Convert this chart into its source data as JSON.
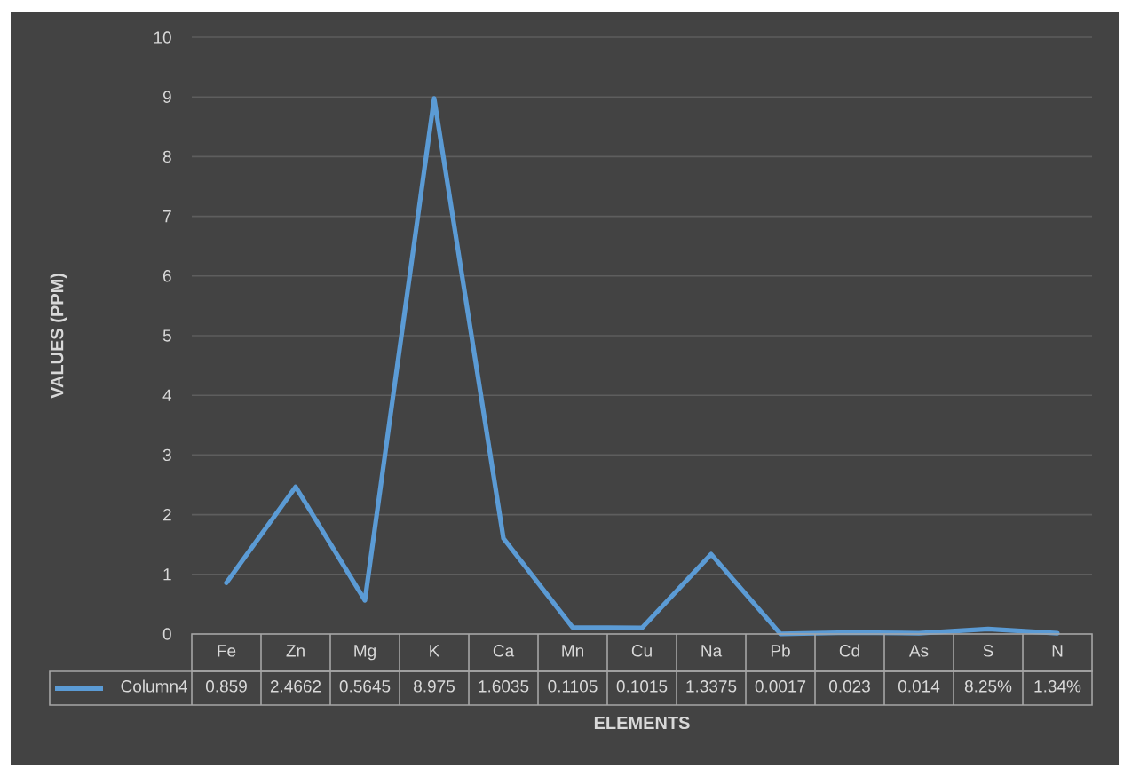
{
  "chart_data": {
    "type": "line",
    "xlabel": "ELEMENTS",
    "ylabel": "VALUES (PPM)",
    "categories": [
      "Fe",
      "Zn",
      "Mg",
      "K",
      "Ca",
      "Mn",
      "Cu",
      "Na",
      "Pb",
      "Cd",
      "As",
      "S",
      "N"
    ],
    "series": [
      {
        "name": "Column4",
        "color": "#5b9bd5",
        "values": [
          0.859,
          2.4662,
          0.5645,
          8.975,
          1.6035,
          0.1105,
          0.1015,
          1.3375,
          0.0017,
          0.023,
          0.014,
          0.0825,
          0.0134
        ],
        "value_labels": [
          "0.859",
          "2.4662",
          "0.5645",
          "8.975",
          "1.6035",
          "0.1105",
          "0.1015",
          "1.3375",
          "0.0017",
          "0.023",
          "0.014",
          "8.25%",
          "1.34%"
        ]
      }
    ],
    "ylim": [
      0,
      10
    ],
    "yticks": [
      0,
      1,
      2,
      3,
      4,
      5,
      6,
      7,
      8,
      9,
      10
    ],
    "grid": "y",
    "legend": "bottom",
    "line_style": "solid"
  }
}
